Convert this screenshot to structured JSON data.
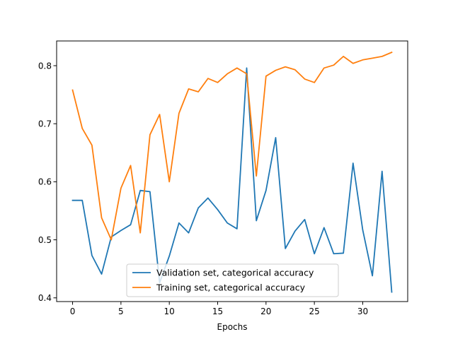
{
  "chart_data": {
    "type": "line",
    "title": "",
    "xlabel": "Epochs",
    "ylabel": "",
    "xlim": [
      -1.65,
      34.65
    ],
    "ylim": [
      0.3936,
      0.8426
    ],
    "xticks": [
      0,
      5,
      10,
      15,
      20,
      25,
      30
    ],
    "yticks": [
      0.4,
      0.5,
      0.6,
      0.7,
      0.8
    ],
    "grid": false,
    "legend_position": "lower center",
    "x": [
      0,
      1,
      2,
      3,
      4,
      5,
      6,
      7,
      8,
      9,
      10,
      11,
      12,
      13,
      14,
      15,
      16,
      17,
      18,
      19,
      20,
      21,
      22,
      23,
      24,
      25,
      26,
      27,
      28,
      29,
      30,
      31,
      32,
      33
    ],
    "series": [
      {
        "name": "Validation set, categorical accuracy",
        "color": "#1f77b4",
        "values": [
          0.568,
          0.568,
          0.473,
          0.441,
          0.505,
          0.516,
          0.526,
          0.585,
          0.583,
          0.426,
          0.472,
          0.529,
          0.512,
          0.555,
          0.572,
          0.552,
          0.529,
          0.519,
          0.796,
          0.533,
          0.585,
          0.676,
          0.485,
          0.515,
          0.535,
          0.476,
          0.521,
          0.476,
          0.477,
          0.632,
          0.517,
          0.438,
          0.618,
          0.41
        ]
      },
      {
        "name": "Training set, categorical accuracy",
        "color": "#ff7f0e",
        "values": [
          0.758,
          0.692,
          0.663,
          0.538,
          0.5,
          0.589,
          0.628,
          0.512,
          0.681,
          0.716,
          0.6,
          0.718,
          0.76,
          0.755,
          0.778,
          0.771,
          0.786,
          0.796,
          0.786,
          0.61,
          0.782,
          0.792,
          0.798,
          0.793,
          0.777,
          0.771,
          0.796,
          0.801,
          0.816,
          0.804,
          0.81,
          0.813,
          0.816,
          0.823
        ]
      }
    ]
  }
}
